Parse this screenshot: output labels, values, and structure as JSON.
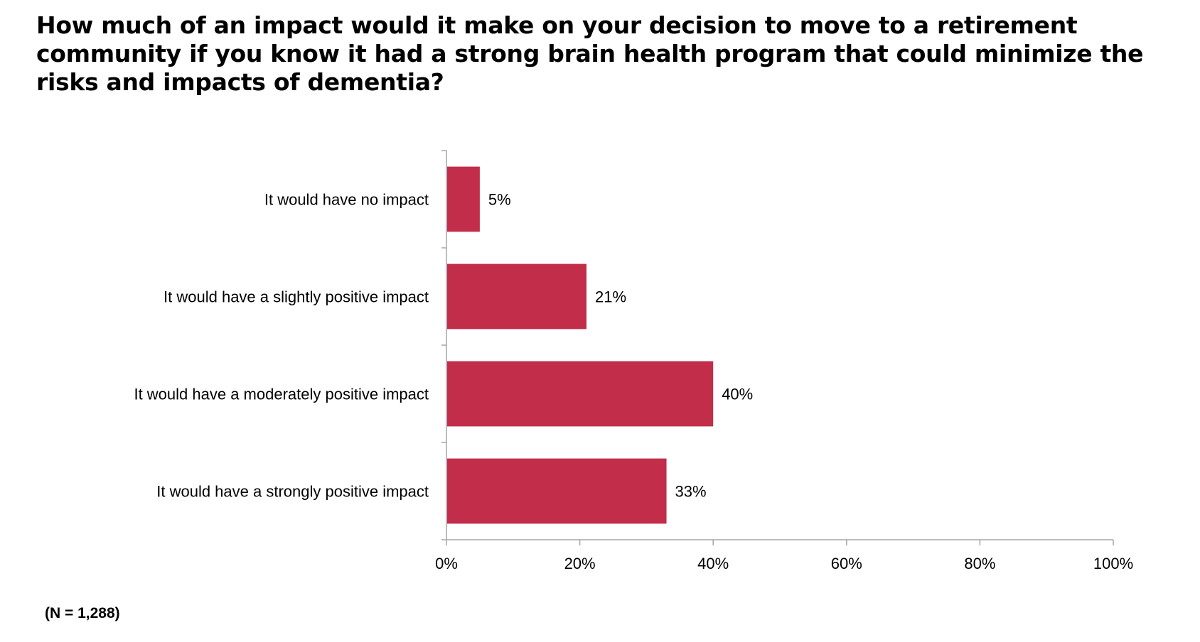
{
  "title": "How much of an impact would it make on your decision to move to a retirement community if you know it had a strong brain health program that could minimize the risks and impacts of dementia?",
  "note": "(N = 1,288)",
  "colors": {
    "bar": "#C22D4A",
    "axis": "#A6A6A6"
  },
  "chart_data": {
    "type": "bar",
    "orientation": "horizontal",
    "categories": [
      "It would have no impact",
      "It would have a slightly positive impact",
      "It would have a moderately positive impact",
      "It would have a strongly positive impact"
    ],
    "values": [
      5,
      21,
      40,
      33
    ],
    "data_labels": [
      "5%",
      "21%",
      "40%",
      "33%"
    ],
    "xlim": [
      0,
      100
    ],
    "x_ticks": [
      0,
      20,
      40,
      60,
      80,
      100
    ],
    "x_tick_labels": [
      "0%",
      "20%",
      "40%",
      "60%",
      "80%",
      "100%"
    ],
    "grid": false,
    "legend": "none"
  }
}
